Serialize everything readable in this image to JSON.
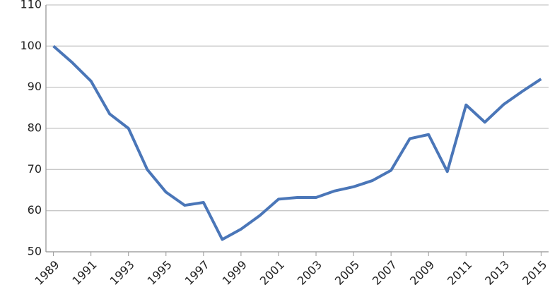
{
  "chart_data": {
    "type": "line",
    "x": [
      1989,
      1990,
      1991,
      1992,
      1993,
      1994,
      1995,
      1996,
      1997,
      1998,
      1999,
      2000,
      2001,
      2002,
      2003,
      2004,
      2005,
      2006,
      2007,
      2008,
      2009,
      2010,
      2011,
      2012,
      2013,
      2014,
      2015
    ],
    "series": [
      {
        "color": "#4a76b8",
        "values": [
          100,
          96,
          91.5,
          83.5,
          80,
          70,
          64.5,
          61.3,
          62,
          53,
          55.5,
          58.8,
          62.8,
          63.2,
          63.2,
          64.8,
          65.8,
          67.3,
          69.8,
          77.5,
          78.5,
          69.5,
          85.7,
          81.5,
          85.8,
          89,
          92
        ]
      }
    ],
    "xlim": [
      1988.6,
      2015.4
    ],
    "xticks": [
      1989,
      1991,
      1993,
      1995,
      1997,
      1999,
      2001,
      2003,
      2005,
      2007,
      2009,
      2011,
      2013,
      2015
    ],
    "ylim": [
      50,
      110
    ],
    "yticks": [
      50,
      60,
      70,
      80,
      90,
      100,
      110
    ],
    "grid": true
  }
}
